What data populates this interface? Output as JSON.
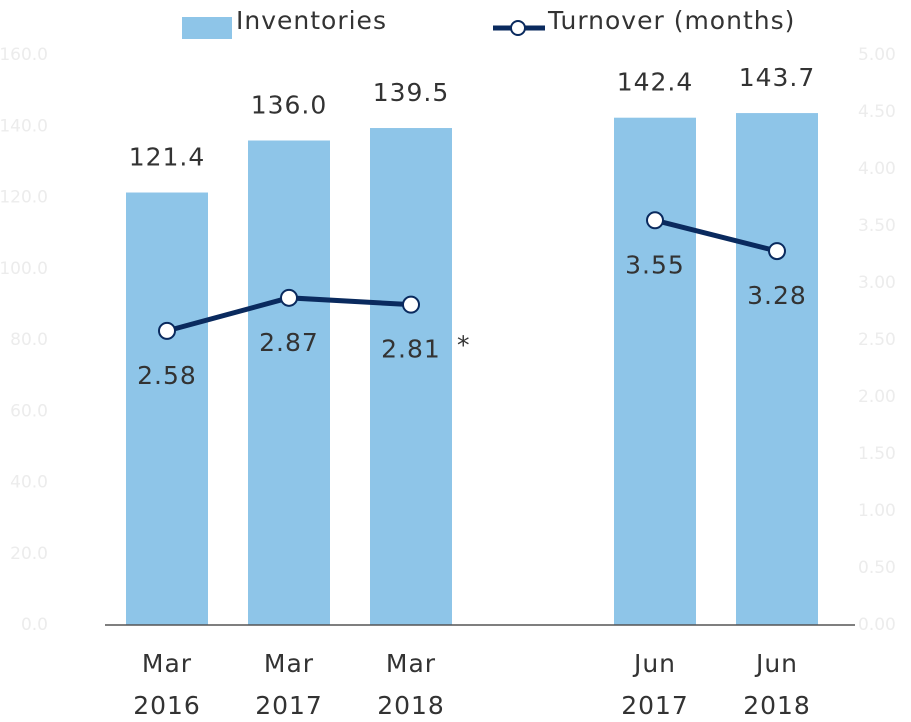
{
  "chart_data": {
    "type": "bar",
    "categories": [
      "Mar 2016",
      "Mar 2017",
      "Mar 2018",
      null,
      "Jun 2017",
      "Jun 2018"
    ],
    "series": [
      {
        "name": "Inventories",
        "type": "bar",
        "color": "#8ec5e8",
        "values": [
          121.4,
          136.0,
          139.5,
          null,
          142.4,
          143.7
        ],
        "value_labels": [
          "121.4",
          "136.0",
          "139.5",
          null,
          "142.4",
          "143.7"
        ]
      },
      {
        "name": "Turnover (months)",
        "type": "line",
        "axis": "y2",
        "color": "#0a2a5e",
        "values": [
          2.58,
          2.87,
          2.81,
          null,
          3.55,
          3.28
        ]
      }
    ],
    "annotation": "*",
    "ylim": [
      0,
      160
    ],
    "yticks": [
      {
        "value": 0,
        "label": "0.0"
      },
      {
        "value": 20,
        "label": "20.0"
      },
      {
        "value": 40,
        "label": "40.0"
      },
      {
        "value": 60,
        "label": "60.0"
      },
      {
        "value": 80,
        "label": "80.0"
      },
      {
        "value": 100,
        "label": "100.0"
      },
      {
        "value": 120,
        "label": "120.0"
      },
      {
        "value": 140,
        "label": "140.0"
      },
      {
        "value": 160,
        "label": "160.0"
      }
    ],
    "y2lim": [
      0,
      5
    ],
    "y2ticks": [
      {
        "value": 0,
        "label": "0.00"
      },
      {
        "value": 0.5,
        "label": "0.50"
      },
      {
        "value": 1,
        "label": "1.00"
      },
      {
        "value": 1.5,
        "label": "1.50"
      },
      {
        "value": 2,
        "label": "2.00"
      },
      {
        "value": 2.5,
        "label": "2.50"
      },
      {
        "value": 3,
        "label": "3.00"
      },
      {
        "value": 3.5,
        "label": "3.50"
      },
      {
        "value": 4,
        "label": "4.00"
      },
      {
        "value": 4.5,
        "label": "4.50"
      },
      {
        "value": 5,
        "label": "5.00"
      }
    ],
    "legend": "top",
    "grid": false
  }
}
